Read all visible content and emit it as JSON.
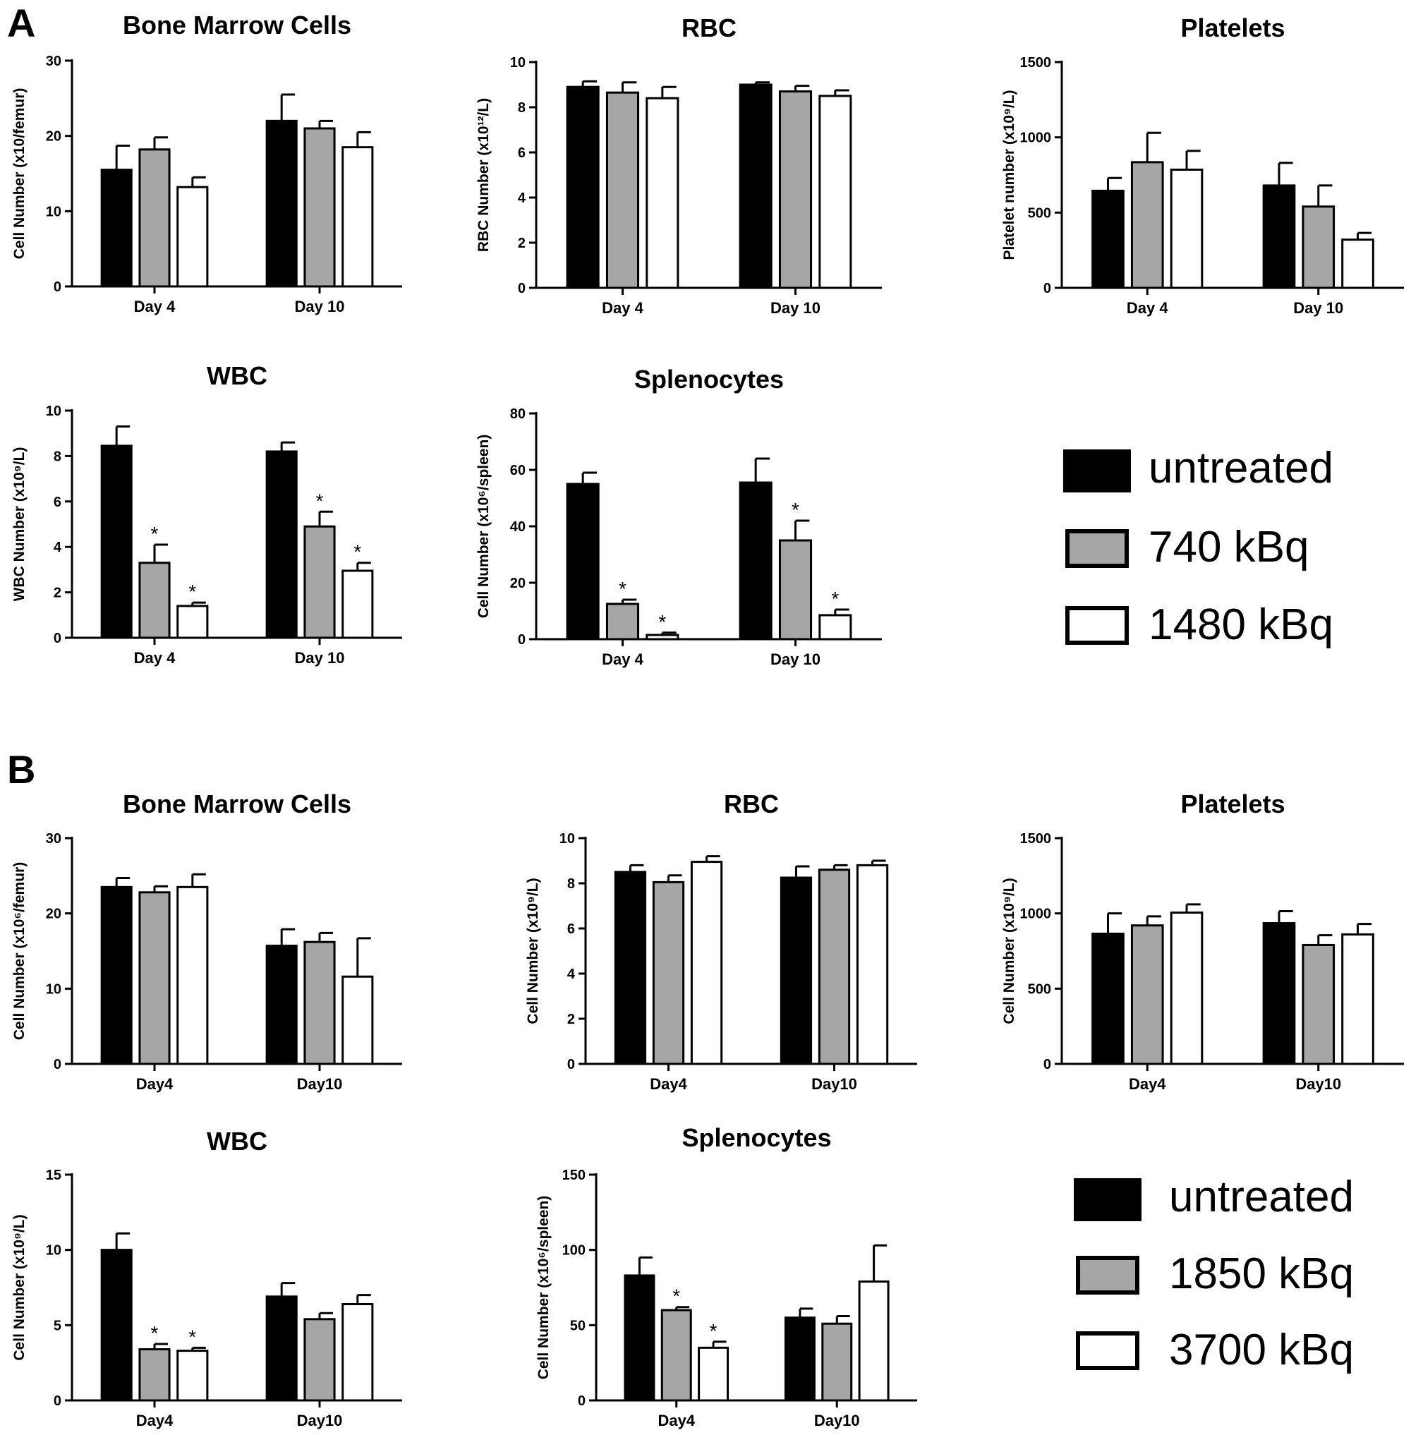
{
  "panels": [
    {
      "letter": "A"
    },
    {
      "letter": "B"
    }
  ],
  "legends": [
    {
      "entries": [
        "untreated",
        "740 kBq",
        "1480 kBq"
      ]
    },
    {
      "entries": [
        "untreated",
        "1850 kBq",
        "3700 kBq"
      ]
    }
  ],
  "colors": {
    "untreated": "#000000",
    "low_dose": "#a6a6a6",
    "high_dose": "#ffffff",
    "bar_edge": "#000000"
  },
  "chart_data": [
    {
      "type": "bar",
      "panel": "A",
      "title": "Bone Marrow Cells",
      "ylabel": "Cell Number (x10/femur)",
      "categories": [
        "Day 4",
        "Day 10"
      ],
      "ylim": [
        0,
        30
      ],
      "yticks": [
        0,
        10,
        20,
        30
      ],
      "series": [
        {
          "name": "untreated",
          "values": [
            15.5,
            22
          ],
          "errors": [
            3.2,
            3.5
          ],
          "sig": [
            false,
            false
          ]
        },
        {
          "name": "740 kBq",
          "values": [
            18.2,
            21
          ],
          "errors": [
            1.6,
            1.0
          ],
          "sig": [
            false,
            false
          ]
        },
        {
          "name": "1480 kBq",
          "values": [
            13.2,
            18.5
          ],
          "errors": [
            1.3,
            2.0
          ],
          "sig": [
            false,
            false
          ]
        }
      ]
    },
    {
      "type": "bar",
      "panel": "A",
      "title": "RBC",
      "ylabel": "RBC Number (x10¹²/L)",
      "categories": [
        "Day 4",
        "Day 10"
      ],
      "ylim": [
        0,
        10
      ],
      "yticks": [
        0,
        2,
        4,
        6,
        8,
        10
      ],
      "series": [
        {
          "name": "untreated",
          "values": [
            8.9,
            9.0
          ],
          "errors": [
            0.25,
            0.1
          ],
          "sig": [
            false,
            false
          ]
        },
        {
          "name": "740 kBq",
          "values": [
            8.65,
            8.7
          ],
          "errors": [
            0.45,
            0.25
          ],
          "sig": [
            false,
            false
          ]
        },
        {
          "name": "1480 kBq",
          "values": [
            8.4,
            8.5
          ],
          "errors": [
            0.5,
            0.25
          ],
          "sig": [
            false,
            false
          ]
        }
      ]
    },
    {
      "type": "bar",
      "panel": "A",
      "title": "Platelets",
      "ylabel": "Platelet number (x10⁹/L)",
      "categories": [
        "Day 4",
        "Day 10"
      ],
      "ylim": [
        0,
        1500
      ],
      "yticks": [
        0,
        500,
        1000,
        1500
      ],
      "series": [
        {
          "name": "untreated",
          "values": [
            645,
            680
          ],
          "errors": [
            85,
            150
          ],
          "sig": [
            false,
            false
          ]
        },
        {
          "name": "740 kBq",
          "values": [
            835,
            540
          ],
          "errors": [
            195,
            140
          ],
          "sig": [
            false,
            false
          ]
        },
        {
          "name": "1480 kBq",
          "values": [
            785,
            320
          ],
          "errors": [
            125,
            45
          ],
          "sig": [
            false,
            false
          ]
        }
      ]
    },
    {
      "type": "bar",
      "panel": "A",
      "title": "WBC",
      "ylabel": "WBC Number (x10⁹/L)",
      "categories": [
        "Day 4",
        "Day 10"
      ],
      "ylim": [
        0,
        10
      ],
      "yticks": [
        0,
        2,
        4,
        6,
        8,
        10
      ],
      "series": [
        {
          "name": "untreated",
          "values": [
            8.45,
            8.2
          ],
          "errors": [
            0.85,
            0.4
          ],
          "sig": [
            false,
            false
          ]
        },
        {
          "name": "740 kBq",
          "values": [
            3.3,
            4.9
          ],
          "errors": [
            0.8,
            0.65
          ],
          "sig": [
            true,
            true
          ]
        },
        {
          "name": "1480 kBq",
          "values": [
            1.4,
            2.95
          ],
          "errors": [
            0.15,
            0.35
          ],
          "sig": [
            true,
            true
          ]
        }
      ]
    },
    {
      "type": "bar",
      "panel": "A",
      "title": "Splenocytes",
      "ylabel": "Cell Number (x10⁶/spleen)",
      "categories": [
        "Day 4",
        "Day 10"
      ],
      "ylim": [
        0,
        80
      ],
      "yticks": [
        0,
        20,
        40,
        60,
        80
      ],
      "series": [
        {
          "name": "untreated",
          "values": [
            55,
            55.5
          ],
          "errors": [
            4,
            8.5
          ],
          "sig": [
            false,
            false
          ]
        },
        {
          "name": "740 kBq",
          "values": [
            12.5,
            35
          ],
          "errors": [
            1.5,
            7
          ],
          "sig": [
            true,
            true
          ]
        },
        {
          "name": "1480 kBq",
          "values": [
            1.5,
            8.5
          ],
          "errors": [
            0.8,
            2
          ],
          "sig": [
            true,
            true
          ]
        }
      ]
    },
    {
      "type": "bar",
      "panel": "B",
      "title": "Bone Marrow Cells",
      "ylabel": "Cell Number (x10⁶/femur)",
      "categories": [
        "Day4",
        "Day10"
      ],
      "ylim": [
        0,
        30
      ],
      "yticks": [
        0,
        10,
        20,
        30
      ],
      "series": [
        {
          "name": "untreated",
          "values": [
            23.5,
            15.7
          ],
          "errors": [
            1.2,
            2.2
          ],
          "sig": [
            false,
            false
          ]
        },
        {
          "name": "1850 kBq",
          "values": [
            22.8,
            16.2
          ],
          "errors": [
            0.8,
            1.2
          ],
          "sig": [
            false,
            false
          ]
        },
        {
          "name": "3700 kBq",
          "values": [
            23.5,
            11.6
          ],
          "errors": [
            1.7,
            5.1
          ],
          "sig": [
            false,
            false
          ]
        }
      ]
    },
    {
      "type": "bar",
      "panel": "B",
      "title": "RBC",
      "ylabel": "Cell Number (x10⁹/L)",
      "categories": [
        "Day4",
        "Day10"
      ],
      "ylim": [
        0,
        10
      ],
      "yticks": [
        0,
        2,
        4,
        6,
        8,
        10
      ],
      "series": [
        {
          "name": "untreated",
          "values": [
            8.5,
            8.25
          ],
          "errors": [
            0.3,
            0.5
          ],
          "sig": [
            false,
            false
          ]
        },
        {
          "name": "1850 kBq",
          "values": [
            8.05,
            8.6
          ],
          "errors": [
            0.3,
            0.2
          ],
          "sig": [
            false,
            false
          ]
        },
        {
          "name": "3700 kBq",
          "values": [
            8.95,
            8.8
          ],
          "errors": [
            0.25,
            0.2
          ],
          "sig": [
            false,
            false
          ]
        }
      ]
    },
    {
      "type": "bar",
      "panel": "B",
      "title": "Platelets",
      "ylabel": "Cell Number (x10⁹/L)",
      "categories": [
        "Day4",
        "Day10"
      ],
      "ylim": [
        0,
        1500
      ],
      "yticks": [
        0,
        500,
        1000,
        1500
      ],
      "series": [
        {
          "name": "untreated",
          "values": [
            865,
            935
          ],
          "errors": [
            135,
            80
          ],
          "sig": [
            false,
            false
          ]
        },
        {
          "name": "1850 kBq",
          "values": [
            920,
            790
          ],
          "errors": [
            60,
            65
          ],
          "sig": [
            false,
            false
          ]
        },
        {
          "name": "3700 kBq",
          "values": [
            1005,
            860
          ],
          "errors": [
            55,
            70
          ],
          "sig": [
            false,
            false
          ]
        }
      ]
    },
    {
      "type": "bar",
      "panel": "B",
      "title": "WBC",
      "ylabel": "Cell Number (x10⁹/L)",
      "categories": [
        "Day4",
        "Day10"
      ],
      "ylim": [
        0,
        15
      ],
      "yticks": [
        0,
        5,
        10,
        15
      ],
      "series": [
        {
          "name": "untreated",
          "values": [
            10,
            6.9
          ],
          "errors": [
            1.1,
            0.9
          ],
          "sig": [
            false,
            false
          ]
        },
        {
          "name": "1850 kBq",
          "values": [
            3.4,
            5.4
          ],
          "errors": [
            0.35,
            0.4
          ],
          "sig": [
            true,
            false
          ]
        },
        {
          "name": "3700 kBq",
          "values": [
            3.3,
            6.4
          ],
          "errors": [
            0.2,
            0.6
          ],
          "sig": [
            true,
            false
          ]
        }
      ]
    },
    {
      "type": "bar",
      "panel": "B",
      "title": "Splenocytes",
      "ylabel": "Cell Number (x10⁶/spleen)",
      "categories": [
        "Day4",
        "Day10"
      ],
      "ylim": [
        0,
        150
      ],
      "yticks": [
        0,
        50,
        100,
        150
      ],
      "series": [
        {
          "name": "untreated",
          "values": [
            83,
            55
          ],
          "errors": [
            12,
            6
          ],
          "sig": [
            false,
            false
          ]
        },
        {
          "name": "1850 kBq",
          "values": [
            60,
            51
          ],
          "errors": [
            2,
            5
          ],
          "sig": [
            true,
            false
          ]
        },
        {
          "name": "3700 kBq",
          "values": [
            35,
            79
          ],
          "errors": [
            4,
            24
          ],
          "sig": [
            true,
            false
          ]
        }
      ]
    }
  ]
}
